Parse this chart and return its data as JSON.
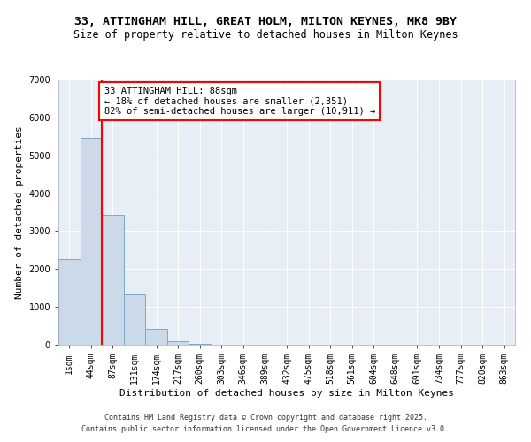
{
  "title_line1": "33, ATTINGHAM HILL, GREAT HOLM, MILTON KEYNES, MK8 9BY",
  "title_line2": "Size of property relative to detached houses in Milton Keynes",
  "xlabel": "Distribution of detached houses by size in Milton Keynes",
  "ylabel": "Number of detached properties",
  "bar_color": "#ccd9e8",
  "bar_edge_color": "#7aaac8",
  "background_color": "#e8eef5",
  "annotation_text": "33 ATTINGHAM HILL: 88sqm\n← 18% of detached houses are smaller (2,351)\n82% of semi-detached houses are larger (10,911) →",
  "subject_bin_index": 2,
  "categories": [
    "1sqm",
    "44sqm",
    "87sqm",
    "131sqm",
    "174sqm",
    "217sqm",
    "260sqm",
    "303sqm",
    "346sqm",
    "389sqm",
    "432sqm",
    "475sqm",
    "518sqm",
    "561sqm",
    "604sqm",
    "648sqm",
    "691sqm",
    "734sqm",
    "777sqm",
    "820sqm",
    "863sqm"
  ],
  "bar_heights": [
    2270,
    5470,
    3420,
    1330,
    430,
    100,
    30,
    10,
    5,
    3,
    2,
    1,
    1,
    1,
    0,
    0,
    0,
    0,
    0,
    0,
    0
  ],
  "ylim": [
    0,
    7000
  ],
  "yticks": [
    0,
    1000,
    2000,
    3000,
    4000,
    5000,
    6000,
    7000
  ],
  "footer_line1": "Contains HM Land Registry data © Crown copyright and database right 2025.",
  "footer_line2": "Contains public sector information licensed under the Open Government Licence v3.0.",
  "title1_fontsize": 9.5,
  "title2_fontsize": 8.5,
  "axis_label_fontsize": 8,
  "tick_fontsize": 7,
  "annotation_fontsize": 7.5,
  "footer_fontsize": 6
}
